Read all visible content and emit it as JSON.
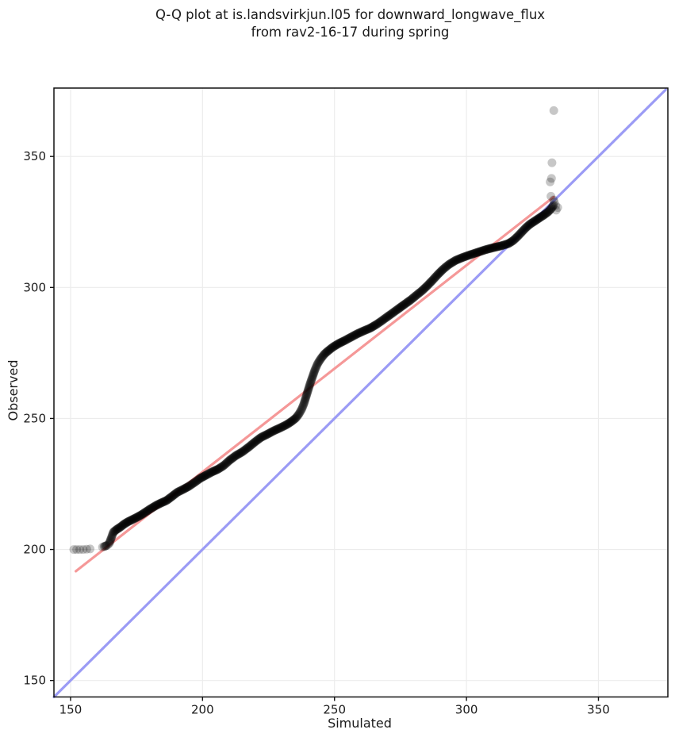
{
  "figure": {
    "title_line1": "Q-Q plot at is.landsvirkjun.l05 for downward_longwave_flux",
    "title_line2": "from rav2-16-17 during spring"
  },
  "chart_data": {
    "type": "scatter",
    "title": "Q-Q plot at is.landsvirkjun.l05 for downward_longwave_flux from rav2-16-17 during spring",
    "xlabel": "Simulated",
    "ylabel": "Observed",
    "xlim": [
      143.7,
      376.3
    ],
    "ylim": [
      143.7,
      376.1
    ],
    "xticks": [
      150,
      200,
      250,
      300,
      350
    ],
    "yticks": [
      150,
      200,
      250,
      300,
      350
    ],
    "grid": true,
    "grid_color": "#ececec",
    "spine_color": "#111111",
    "tick_color": "#1c1c1c",
    "background": "#ffffff",
    "identity_line": {
      "name": "1:1-line",
      "color": "#9b9bf5",
      "width": 3.2,
      "x": [
        143.7,
        375.5
      ],
      "y": [
        143.7,
        375.5
      ]
    },
    "fit_line": {
      "name": "regression-line",
      "color": "#f59898",
      "width": 3.2,
      "x": [
        152.0,
        333.0
      ],
      "y": [
        191.7,
        334.5
      ]
    },
    "scatter_style": {
      "marker": "circle",
      "color": "#000000",
      "opacity": 0.22,
      "radius": 5.5,
      "interp_step": 0.22
    },
    "scatter": {
      "left_singles": [
        [
          151.2,
          200.0
        ],
        [
          152.3,
          200.0
        ],
        [
          153.5,
          200.0
        ],
        [
          154.8,
          200.0
        ],
        [
          156.1,
          200.1
        ],
        [
          157.4,
          200.2
        ]
      ],
      "left_cluster": [
        [
          162.1,
          200.9
        ],
        [
          162.7,
          201.1
        ],
        [
          163.2,
          201.3
        ],
        [
          163.6,
          201.5
        ],
        [
          164.0,
          201.7
        ],
        [
          163.4,
          201.4
        ],
        [
          162.9,
          201.2
        ]
      ],
      "curve": [
        [
          164.6,
          202.2
        ],
        [
          165.4,
          204.3
        ],
        [
          166.2,
          206.6
        ],
        [
          167.4,
          207.6
        ],
        [
          168.8,
          208.5
        ],
        [
          170.2,
          209.6
        ],
        [
          171.6,
          210.5
        ],
        [
          173.2,
          211.3
        ],
        [
          175.0,
          212.2
        ],
        [
          176.8,
          213.2
        ],
        [
          178.6,
          214.4
        ],
        [
          180.4,
          215.6
        ],
        [
          182.4,
          216.8
        ],
        [
          184.4,
          217.8
        ],
        [
          186.4,
          218.7
        ],
        [
          188.4,
          220.2
        ],
        [
          190.4,
          221.8
        ],
        [
          192.6,
          222.9
        ],
        [
          194.8,
          224.1
        ],
        [
          197.0,
          225.6
        ],
        [
          199.2,
          227.2
        ],
        [
          201.4,
          228.4
        ],
        [
          203.6,
          229.6
        ],
        [
          205.8,
          230.6
        ],
        [
          208.0,
          232.0
        ],
        [
          210.2,
          234.0
        ],
        [
          212.6,
          235.8
        ],
        [
          215.0,
          237.2
        ],
        [
          217.4,
          239.0
        ],
        [
          219.8,
          241.0
        ],
        [
          222.2,
          242.8
        ],
        [
          224.6,
          244.0
        ],
        [
          227.0,
          245.3
        ],
        [
          229.4,
          246.4
        ],
        [
          231.8,
          247.6
        ],
        [
          233.8,
          248.9
        ],
        [
          235.4,
          250.2
        ],
        [
          236.6,
          251.8
        ],
        [
          237.6,
          253.6
        ],
        [
          238.4,
          255.6
        ],
        [
          239.2,
          258.2
        ],
        [
          240.0,
          260.8
        ],
        [
          240.8,
          263.4
        ],
        [
          241.7,
          266.0
        ],
        [
          242.6,
          268.6
        ],
        [
          243.6,
          270.9
        ],
        [
          244.8,
          272.8
        ],
        [
          246.2,
          274.6
        ],
        [
          247.8,
          276.0
        ],
        [
          249.6,
          277.4
        ],
        [
          251.6,
          278.6
        ],
        [
          253.8,
          279.7
        ],
        [
          256.2,
          281.0
        ],
        [
          258.6,
          282.3
        ],
        [
          261.0,
          283.4
        ],
        [
          263.4,
          284.4
        ],
        [
          265.6,
          285.7
        ],
        [
          267.8,
          287.2
        ],
        [
          270.0,
          288.8
        ],
        [
          272.2,
          290.4
        ],
        [
          274.4,
          292.0
        ],
        [
          276.6,
          293.6
        ],
        [
          278.8,
          295.2
        ],
        [
          281.0,
          297.0
        ],
        [
          283.2,
          298.8
        ],
        [
          285.2,
          300.7
        ],
        [
          287.2,
          302.8
        ],
        [
          289.2,
          305.0
        ],
        [
          291.2,
          307.0
        ],
        [
          293.4,
          308.8
        ],
        [
          295.8,
          310.3
        ],
        [
          298.4,
          311.4
        ],
        [
          301.2,
          312.4
        ],
        [
          304.2,
          313.4
        ],
        [
          307.2,
          314.4
        ],
        [
          310.2,
          315.2
        ],
        [
          313.2,
          315.9
        ],
        [
          315.8,
          316.7
        ],
        [
          317.6,
          317.8
        ],
        [
          319.2,
          319.3
        ],
        [
          320.8,
          321.0
        ],
        [
          322.4,
          322.7
        ],
        [
          324.0,
          324.1
        ],
        [
          325.8,
          325.3
        ],
        [
          327.6,
          326.5
        ],
        [
          329.4,
          327.7
        ],
        [
          331.0,
          328.9
        ],
        [
          332.2,
          330.2
        ],
        [
          333.0,
          331.4
        ]
      ],
      "tail_singles": [
        [
          333.3,
          332.6
        ],
        [
          333.0,
          333.4
        ],
        [
          334.0,
          329.5
        ],
        [
          334.6,
          330.5
        ],
        [
          333.8,
          331.3
        ]
      ],
      "upper_outliers": [
        [
          332.0,
          334.8
        ],
        [
          331.7,
          340.3
        ],
        [
          332.2,
          341.6
        ],
        [
          332.4,
          347.6
        ],
        [
          333.1,
          367.5
        ]
      ]
    }
  }
}
